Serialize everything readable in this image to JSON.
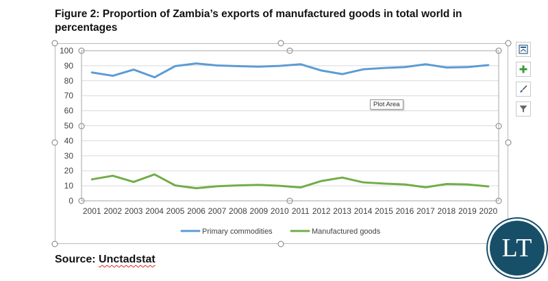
{
  "figure": {
    "title": "Figure 2: Proportion of Zambia’s exports of manufactured goods in total world in percentages",
    "source_label": "Source:",
    "source_value": "Unctadstat",
    "logo_text": "LT",
    "tooltip": "Plot Area"
  },
  "side_buttons": [
    {
      "name": "chart-elements-button",
      "icon": "layout-icon"
    },
    {
      "name": "add-element-button",
      "icon": "plus-icon"
    },
    {
      "name": "chart-styles-button",
      "icon": "brush-icon"
    },
    {
      "name": "chart-filters-button",
      "icon": "filter-icon"
    }
  ],
  "chart_data": {
    "type": "line",
    "x": [
      "2001",
      "2002",
      "2003",
      "2004",
      "2005",
      "2006",
      "2007",
      "2008",
      "2009",
      "2010",
      "2011",
      "2012",
      "2013",
      "2014",
      "2015",
      "2016",
      "2017",
      "2018",
      "2019",
      "2020"
    ],
    "series": [
      {
        "name": "Primary commodities",
        "color": "#5b9bd5",
        "values": [
          85.5,
          83.3,
          87.4,
          82.3,
          89.8,
          91.5,
          90.2,
          89.7,
          89.4,
          89.9,
          91.0,
          86.8,
          84.4,
          87.6,
          88.5,
          89.1,
          91.0,
          88.8,
          89.1,
          90.4
        ]
      },
      {
        "name": "Manufactured goods",
        "color": "#70ad47",
        "values": [
          14.3,
          16.7,
          12.6,
          17.6,
          10.2,
          8.4,
          9.7,
          10.3,
          10.6,
          10.0,
          8.9,
          13.2,
          15.5,
          12.3,
          11.5,
          10.9,
          9.0,
          11.2,
          10.9,
          9.6
        ]
      }
    ],
    "ylim": [
      0,
      100
    ],
    "yticks": [
      "0",
      "10",
      "20",
      "30",
      "40",
      "50",
      "60",
      "70",
      "80",
      "90",
      "100"
    ],
    "grid": true,
    "legend": "bottom"
  }
}
